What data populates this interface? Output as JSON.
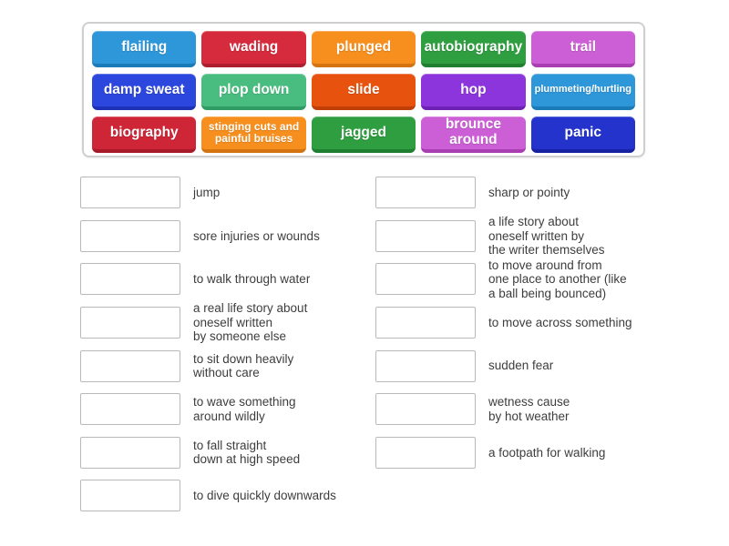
{
  "tiles": [
    {
      "label": "flailing",
      "bg": "#2e97d9",
      "edge": "#1b7bb8",
      "font": "normal"
    },
    {
      "label": "wading",
      "bg": "#d62b3c",
      "edge": "#ad1f2e",
      "font": "normal"
    },
    {
      "label": "plunged",
      "bg": "#f78f1e",
      "edge": "#d47410",
      "font": "normal"
    },
    {
      "label": "autobiography",
      "bg": "#2f9e41",
      "edge": "#1f7f30",
      "font": "normal"
    },
    {
      "label": "trail",
      "bg": "#cc5fd6",
      "edge": "#a93eb3",
      "font": "normal"
    },
    {
      "label": "damp sweat",
      "bg": "#2c47dd",
      "edge": "#1c31b5",
      "font": "normal"
    },
    {
      "label": "plop down",
      "bg": "#49bd7f",
      "edge": "#2f9c63",
      "font": "normal"
    },
    {
      "label": "slide",
      "bg": "#e8520f",
      "edge": "#bf3f07",
      "font": "normal"
    },
    {
      "label": "hop",
      "bg": "#8c35dd",
      "edge": "#6d21b5",
      "font": "normal"
    },
    {
      "label": "plummeting/hurtling",
      "bg": "#2e97d9",
      "edge": "#1b7bb8",
      "font": "small"
    },
    {
      "label": "biography",
      "bg": "#ce2537",
      "edge": "#a81a29",
      "font": "normal"
    },
    {
      "label": "stinging cuts and\npainful bruises",
      "bg": "#f78f1e",
      "edge": "#d47410",
      "font": "small2"
    },
    {
      "label": "jagged",
      "bg": "#2f9e41",
      "edge": "#1f7f30",
      "font": "normal"
    },
    {
      "label": "brounce\naround",
      "bg": "#cc5fd6",
      "edge": "#a93eb3",
      "font": "normal"
    },
    {
      "label": "panic",
      "bg": "#2433cc",
      "edge": "#1722a3",
      "font": "normal"
    }
  ],
  "matches": {
    "left": [
      {
        "clue": "jump"
      },
      {
        "clue": "sore injuries or wounds"
      },
      {
        "clue": "to walk through water"
      },
      {
        "clue": "a real life story about\noneself written\nby someone else"
      },
      {
        "clue": "to sit down heavily\nwithout care"
      },
      {
        "clue": "to wave something\naround wildly"
      },
      {
        "clue": "to fall straight\ndown at high speed"
      },
      {
        "clue": "to dive quickly downwards"
      }
    ],
    "right": [
      {
        "clue": "sharp or pointy"
      },
      {
        "clue": "a life story about\noneself written by\nthe writer themselves"
      },
      {
        "clue": "to move around from\none place to another (like\na ball being bounced)"
      },
      {
        "clue": "to move across something"
      },
      {
        "clue": "sudden fear"
      },
      {
        "clue": "wetness cause\nby hot weather"
      },
      {
        "clue": "a footpath for walking"
      }
    ]
  },
  "colors": {
    "panel_border": "#cfcfcf",
    "answer_box_border": "#b9b9b9",
    "clue_text": "#3d3d3d",
    "tile_text": "#ffffff"
  }
}
